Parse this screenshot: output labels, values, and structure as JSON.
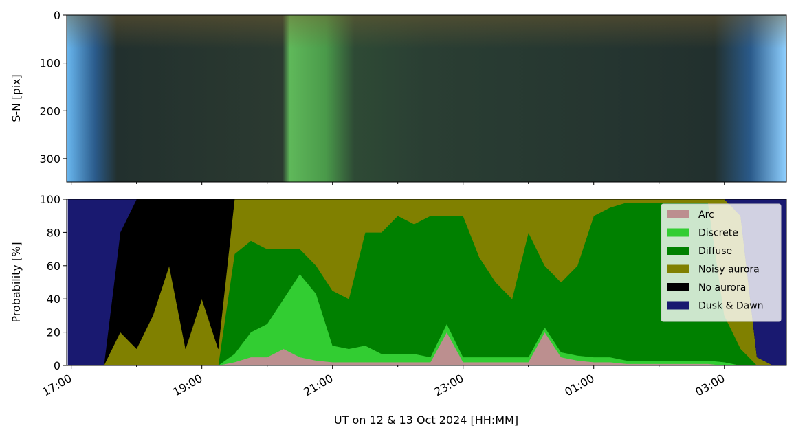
{
  "chart_data": [
    {
      "type": "image",
      "ylabel": "S-N [pix]",
      "ylim": [
        0,
        349
      ],
      "y_inverted": true,
      "yticks": [
        0,
        100,
        200,
        300
      ]
    },
    {
      "type": "stackedarea",
      "ylabel": "Probability [%]",
      "xlabel": "UT on 12 & 13 Oct 2024 [HH:MM]",
      "xlim": [
        16.93,
        27.95
      ],
      "xticks": [
        {
          "value": 17,
          "label": "17:00"
        },
        {
          "value": 19,
          "label": "19:00"
        },
        {
          "value": 21,
          "label": "21:00"
        },
        {
          "value": 23,
          "label": "23:00"
        },
        {
          "value": 25,
          "label": "01:00"
        },
        {
          "value": 27,
          "label": "03:00"
        }
      ],
      "xminor": [
        18,
        20,
        22,
        24,
        26
      ],
      "ylim": [
        0,
        100
      ],
      "yticks": [
        0,
        20,
        40,
        60,
        80,
        100
      ],
      "legend": "upper right",
      "x": [
        16.95,
        17.25,
        17.5,
        17.75,
        18,
        18.25,
        18.5,
        18.75,
        19,
        19.25,
        19.5,
        19.75,
        20,
        20.25,
        20.5,
        20.75,
        21,
        21.25,
        21.5,
        21.75,
        22,
        22.25,
        22.5,
        22.75,
        23,
        23.25,
        23.5,
        23.75,
        24,
        24.25,
        24.5,
        24.75,
        25,
        25.25,
        25.5,
        25.75,
        26,
        26.25,
        26.5,
        26.75,
        27,
        27.25,
        27.5,
        27.75,
        27.95
      ],
      "series": [
        {
          "name": "Arc",
          "color": "#bc8f8f",
          "values": [
            0,
            0,
            0,
            0,
            0,
            0,
            0,
            0,
            0,
            0,
            2,
            5,
            5,
            10,
            5,
            3,
            2,
            2,
            2,
            2,
            2,
            2,
            2,
            20,
            2,
            2,
            2,
            2,
            2,
            20,
            5,
            3,
            2,
            2,
            1,
            1,
            1,
            1,
            1,
            1,
            0,
            0,
            0,
            0,
            0
          ]
        },
        {
          "name": "Discrete",
          "color": "#32cd32",
          "values": [
            0,
            0,
            0,
            0,
            0,
            0,
            0,
            0,
            0,
            0,
            5,
            15,
            20,
            30,
            50,
            40,
            10,
            8,
            10,
            5,
            5,
            5,
            3,
            5,
            3,
            3,
            3,
            3,
            3,
            3,
            3,
            3,
            3,
            3,
            2,
            2,
            2,
            2,
            2,
            2,
            2,
            0,
            0,
            0,
            0
          ]
        },
        {
          "name": "Diffuse",
          "color": "#008000",
          "values": [
            0,
            0,
            0,
            0,
            0,
            0,
            0,
            0,
            0,
            0,
            60,
            55,
            45,
            30,
            15,
            17,
            33,
            30,
            68,
            73,
            83,
            78,
            85,
            65,
            85,
            60,
            45,
            35,
            75,
            37,
            42,
            54,
            85,
            90,
            95,
            95,
            95,
            95,
            95,
            95,
            28,
            10,
            0,
            0,
            0
          ]
        },
        {
          "name": "Noisy aurora",
          "color": "#808000",
          "values": [
            0,
            0,
            0,
            20,
            10,
            30,
            60,
            10,
            40,
            10,
            33,
            25,
            30,
            30,
            30,
            40,
            55,
            60,
            20,
            20,
            10,
            15,
            10,
            10,
            10,
            35,
            50,
            60,
            20,
            40,
            50,
            40,
            10,
            5,
            2,
            2,
            2,
            2,
            2,
            2,
            70,
            80,
            5,
            0,
            0
          ]
        },
        {
          "name": "No aurora",
          "color": "#000000",
          "values": [
            0,
            0,
            0,
            60,
            90,
            70,
            40,
            90,
            60,
            90,
            0,
            0,
            0,
            0,
            0,
            0,
            0,
            0,
            0,
            0,
            0,
            0,
            0,
            0,
            0,
            0,
            0,
            0,
            0,
            0,
            0,
            0,
            0,
            0,
            0,
            0,
            0,
            0,
            0,
            0,
            0,
            0,
            0,
            0,
            0
          ]
        },
        {
          "name": "Dusk & Dawn",
          "color": "#191970",
          "values": [
            100,
            100,
            100,
            20,
            0,
            0,
            0,
            0,
            0,
            0,
            0,
            0,
            0,
            0,
            0,
            0,
            0,
            0,
            0,
            0,
            0,
            0,
            0,
            0,
            0,
            0,
            0,
            0,
            0,
            0,
            0,
            0,
            0,
            0,
            0,
            0,
            0,
            0,
            0,
            0,
            0,
            10,
            95,
            100,
            100
          ]
        }
      ]
    }
  ]
}
